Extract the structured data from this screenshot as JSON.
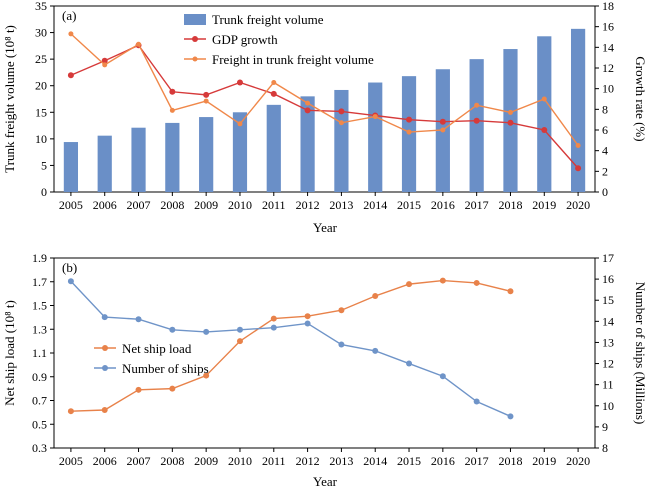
{
  "chart_data": [
    {
      "type": "bar",
      "panel_label": "(a)",
      "categories": [
        "2005",
        "2006",
        "2007",
        "2008",
        "2009",
        "2010",
        "2011",
        "2012",
        "2013",
        "2014",
        "2015",
        "2016",
        "2017",
        "2018",
        "2019",
        "2020"
      ],
      "xlabel": "Year",
      "ylabel": "Trunk freight volume (10⁸ t)",
      "ylabel_right": "Growth rate (%)",
      "ylim": [
        0,
        35
      ],
      "ylim_right": [
        0,
        18
      ],
      "yticks": [
        "0",
        "5",
        "10",
        "15",
        "20",
        "25",
        "30",
        "35"
      ],
      "yticks_right": [
        "0",
        "2",
        "4",
        "6",
        "8",
        "10",
        "12",
        "14",
        "16",
        "18"
      ],
      "legend_position": "top-center",
      "series": [
        {
          "name": "Trunk freight volume",
          "axis": "left",
          "kind": "bar",
          "color": "#6a8fc7",
          "values": [
            9.4,
            10.6,
            12.1,
            13.0,
            14.1,
            15.0,
            16.4,
            18.0,
            19.2,
            20.6,
            21.8,
            23.1,
            25.0,
            26.9,
            29.3,
            30.7
          ]
        },
        {
          "name": "GDP growth",
          "axis": "right",
          "kind": "line",
          "color": "#d63a3a",
          "values": [
            11.3,
            12.7,
            14.2,
            9.7,
            9.4,
            10.6,
            9.5,
            7.9,
            7.8,
            7.4,
            7.0,
            6.8,
            6.9,
            6.7,
            6.0,
            2.3
          ]
        },
        {
          "name": "Freight in trunk freight volume",
          "axis": "right",
          "kind": "line",
          "color": "#f0884a",
          "values": [
            15.3,
            12.3,
            14.3,
            7.9,
            8.8,
            6.6,
            10.6,
            8.6,
            6.7,
            7.3,
            5.8,
            6.0,
            8.4,
            7.7,
            9.0,
            4.5
          ]
        }
      ]
    },
    {
      "type": "line",
      "panel_label": "(b)",
      "categories": [
        "2005",
        "2006",
        "2007",
        "2008",
        "2009",
        "2010",
        "2011",
        "2012",
        "2013",
        "2014",
        "2015",
        "2016",
        "2017",
        "2018",
        "2019",
        "2020"
      ],
      "xlabel": "Year",
      "ylabel": "Net ship load (10⁸ t)",
      "ylabel_right": "Number of ships (Millions)",
      "ylim": [
        0.3,
        1.9
      ],
      "ylim_right": [
        8,
        17
      ],
      "yticks": [
        "0.3",
        "0.5",
        "0.7",
        "0.9",
        "1.1",
        "1.3",
        "1.5",
        "1.7",
        "1.9"
      ],
      "yticks_right": [
        "8",
        "9",
        "10",
        "11",
        "12",
        "13",
        "14",
        "15",
        "16",
        "17"
      ],
      "legend_position": "middle-left",
      "series": [
        {
          "name": "Net ship load",
          "axis": "left",
          "color": "#e8824a",
          "values": [
            0.61,
            0.62,
            0.79,
            0.8,
            0.91,
            1.2,
            1.39,
            1.41,
            1.46,
            1.58,
            1.68,
            1.71,
            1.69,
            1.62,
            null,
            null
          ]
        },
        {
          "name": "Number of ships",
          "axis": "right",
          "color": "#6f94c8",
          "values": [
            15.9,
            14.2,
            14.1,
            13.6,
            13.5,
            13.6,
            13.7,
            13.9,
            12.9,
            12.6,
            12.0,
            11.4,
            10.2,
            9.5,
            null,
            null
          ]
        }
      ]
    }
  ]
}
